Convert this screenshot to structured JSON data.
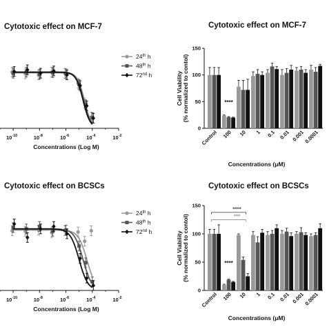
{
  "titles": {
    "top_left": "Cytotoxic effect on MCF-7",
    "top_right": "Cytotoxic effect on MCF-7",
    "bottom_left": "Cytotoxic effect on BCSCs",
    "bottom_right": "Cytotoxic effect on BCSCs"
  },
  "colors": {
    "24h": "#999999",
    "48h": "#555555",
    "72h": "#111111"
  },
  "legend": [
    {
      "base": "24",
      "sup": "th",
      "unit": "h"
    },
    {
      "base": "48",
      "sup": "th",
      "unit": "h"
    },
    {
      "base": "72",
      "sup": "nd",
      "unit": "h"
    }
  ],
  "chart_data": [
    {
      "type": "line",
      "panel": "top-left",
      "title": "",
      "xlabel": "Concentrations (Log M)",
      "x_ticks": [
        "10",
        "10",
        "10",
        "10",
        "10"
      ],
      "x_tick_exponents": [
        "-10",
        "-8",
        "-6",
        "-4",
        "-2"
      ],
      "x_log_range": [
        -11,
        -2
      ],
      "y_range": [
        0,
        130
      ],
      "series": [
        {
          "name": "24th h",
          "points": [
            [
              -10,
              100
            ],
            [
              -9,
              97
            ],
            [
              -8,
              95
            ],
            [
              -7,
              100
            ],
            [
              -6,
              98
            ],
            [
              -5,
              80
            ],
            [
              -4.5,
              45
            ],
            [
              -4,
              20
            ]
          ],
          "fit": {
            "top": 100,
            "bottom": 0,
            "logEC50": -4.6,
            "hill": 1.6
          }
        },
        {
          "name": "48th h",
          "points": [
            [
              -10,
              98
            ],
            [
              -9,
              100
            ],
            [
              -8,
              96
            ],
            [
              -7,
              99
            ],
            [
              -6,
              97
            ],
            [
              -5,
              78
            ],
            [
              -4.5,
              42
            ],
            [
              -4,
              19
            ]
          ],
          "fit": {
            "top": 99,
            "bottom": 0,
            "logEC50": -4.65,
            "hill": 1.6
          }
        },
        {
          "name": "72nd h",
          "points": [
            [
              -10,
              101
            ],
            [
              -9,
              104
            ],
            [
              -8,
              98
            ],
            [
              -7,
              102
            ],
            [
              -6,
              95
            ],
            [
              -5,
              76
            ],
            [
              -4.5,
              40
            ],
            [
              -4,
              18
            ]
          ],
          "fit": {
            "top": 100,
            "bottom": 0,
            "logEC50": -4.7,
            "hill": 1.6
          }
        }
      ]
    },
    {
      "type": "bar",
      "panel": "top-right",
      "title": "",
      "xlabel": "Concentrations (μM)",
      "ylabel": "Cell Viability",
      "ylabel2": "(% normalized to contol)",
      "ylim": [
        0,
        150
      ],
      "yticks": [
        0,
        50,
        100,
        150
      ],
      "categories": [
        "Control",
        "100",
        "10",
        "1",
        "0.1",
        "0.01",
        "0.001",
        "0.0001"
      ],
      "series": [
        {
          "name": "24th h",
          "values": [
            100,
            24,
            78,
            98,
            104,
            100,
            108,
            110
          ]
        },
        {
          "name": "48th h",
          "values": [
            100,
            21,
            72,
            102,
            116,
            104,
            110,
            106
          ]
        },
        {
          "name": "72nd h",
          "values": [
            100,
            20,
            72,
            100,
            111,
            110,
            104,
            117
          ]
        }
      ],
      "errors": [
        [
          14,
          1,
          12,
          8,
          6,
          10,
          6,
          8
        ],
        [
          14,
          1,
          18,
          8,
          6,
          8,
          6,
          8
        ],
        [
          14,
          1,
          20,
          6,
          5,
          8,
          6,
          3
        ]
      ],
      "annotations": [
        {
          "category": "100",
          "text": "****"
        }
      ]
    },
    {
      "type": "line",
      "panel": "bottom-left",
      "title": "",
      "xlabel": "Concentrations (Log M)",
      "x_ticks": [
        "10",
        "10",
        "10",
        "10",
        "10"
      ],
      "x_tick_exponents": [
        "-10",
        "-8",
        "-6",
        "-4",
        "-2"
      ],
      "x_log_range": [
        -11,
        -2
      ],
      "y_range": [
        0,
        130
      ],
      "series": [
        {
          "name": "24th h",
          "points": [
            [
              -10,
              97
            ],
            [
              -9,
              96
            ],
            [
              -8,
              98
            ],
            [
              -7,
              94
            ],
            [
              -6,
              97
            ],
            [
              -5,
              95
            ],
            [
              -4.5,
              80
            ],
            [
              -4,
              97
            ]
          ],
          "fit": {
            "top": 98,
            "bottom": 0,
            "logEC50": -4.4,
            "hill": 1.3
          }
        },
        {
          "name": "48th h",
          "points": [
            [
              -10,
              102
            ],
            [
              -9,
              100
            ],
            [
              -8,
              104
            ],
            [
              -7,
              96
            ],
            [
              -6,
              98
            ],
            [
              -5,
              72
            ],
            [
              -4.5,
              45
            ],
            [
              -4,
              14
            ]
          ],
          "fit": {
            "top": 100,
            "bottom": 0,
            "logEC50": -4.7,
            "hill": 1.3
          }
        },
        {
          "name": "72nd h",
          "points": [
            [
              -10,
              108
            ],
            [
              -9,
              86
            ],
            [
              -8,
              100
            ],
            [
              -7,
              104
            ],
            [
              -6,
              92
            ],
            [
              -5,
              52
            ],
            [
              -4.5,
              20
            ],
            [
              -4,
              8
            ]
          ],
          "fit": {
            "top": 100,
            "bottom": 0,
            "logEC50": -5.0,
            "hill": 1.3
          }
        }
      ]
    },
    {
      "type": "bar",
      "panel": "bottom-right",
      "title": "",
      "xlabel": "Concentrations (μM)",
      "ylabel": "Cell Viability",
      "ylabel2": "(% normalized to contol)",
      "ylim": [
        0,
        150
      ],
      "yticks": [
        0,
        50,
        100,
        150
      ],
      "categories": [
        "Control",
        "100",
        "10",
        "1",
        "0.1",
        "0.01",
        "0.001",
        "0.0001"
      ],
      "series": [
        {
          "name": "24th h",
          "values": [
            100,
            10,
            98,
            98,
            98,
            100,
            100,
            96
          ]
        },
        {
          "name": "48th h",
          "values": [
            100,
            19,
            54,
            85,
            100,
            104,
            103,
            98
          ]
        },
        {
          "name": "72nd h",
          "values": [
            100,
            15,
            25,
            102,
            110,
            96,
            98,
            110
          ]
        }
      ],
      "errors": [
        [
          8,
          1,
          2,
          6,
          6,
          6,
          4,
          4
        ],
        [
          8,
          1,
          5,
          10,
          6,
          6,
          8,
          4
        ],
        [
          16,
          1,
          5,
          6,
          6,
          6,
          4,
          8
        ]
      ],
      "annotations": [
        {
          "category": "100",
          "text": "****"
        }
      ],
      "brackets": [
        {
          "text": "****",
          "from": "Control",
          "to": "10",
          "level": 138,
          "color": "#555555"
        },
        {
          "text": "***",
          "from": "Control",
          "to": "10",
          "level": 125,
          "color": "#999999"
        }
      ]
    }
  ]
}
